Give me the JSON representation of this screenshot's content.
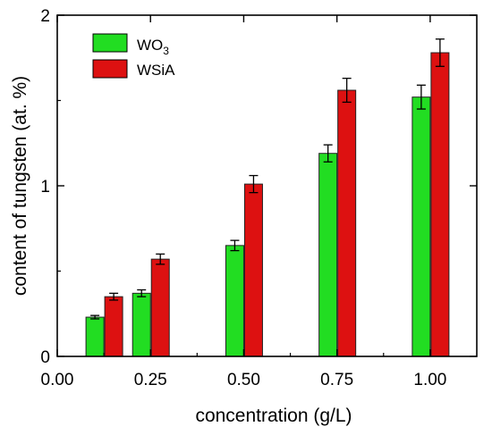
{
  "chart_data": {
    "type": "bar",
    "xlabel": "concentration (g/L)",
    "ylabel": "content of tungsten (at. %)",
    "ylim": [
      0,
      2
    ],
    "xlim": [
      0,
      1.125
    ],
    "x_ticks": [
      "0.00",
      "0.25",
      "0.50",
      "0.75",
      "1.00"
    ],
    "y_ticks": [
      "0",
      "1",
      "2"
    ],
    "legend_position": "top-left",
    "x": [
      0.125,
      0.25,
      0.5,
      0.75,
      1.0
    ],
    "series": [
      {
        "name": "WO3",
        "name_main": "WO",
        "name_sub": "3",
        "color": "#22dd22",
        "values": [
          0.23,
          0.37,
          0.65,
          1.19,
          1.52
        ],
        "errors": [
          0.01,
          0.02,
          0.03,
          0.05,
          0.07
        ]
      },
      {
        "name": "WSiA",
        "color": "#dd1111",
        "values": [
          0.35,
          0.57,
          1.01,
          1.56,
          1.78
        ],
        "errors": [
          0.02,
          0.03,
          0.05,
          0.07,
          0.08
        ]
      }
    ]
  }
}
